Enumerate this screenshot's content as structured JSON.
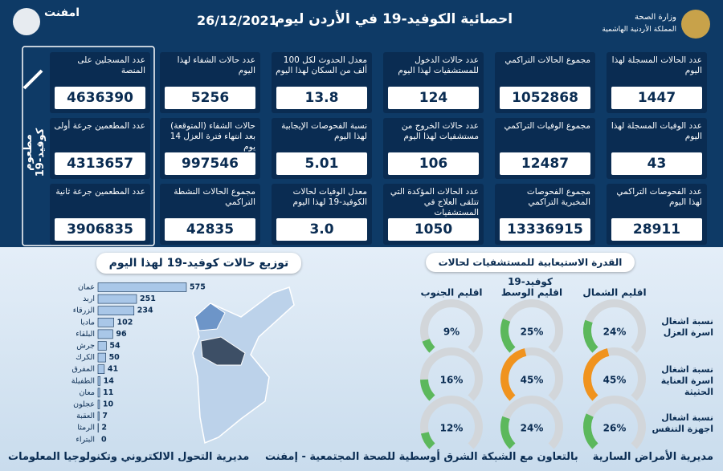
{
  "header": {
    "title": "احصائية الكوفيد-19 في الأردن ليوم",
    "date": "26/12/2021",
    "ministry": "وزارة الصحة",
    "kingdom": "المملكة الأردنية الهاشمية",
    "logo": "امفنت"
  },
  "stats": [
    [
      {
        "label": "عدد الحالات المسجلة لهذا اليوم",
        "value": "1447"
      },
      {
        "label": "مجموع الحالات التراكمي",
        "value": "1052868"
      },
      {
        "label": "عدد حالات الدخول للمستشفيات لهذا اليوم",
        "value": "124"
      },
      {
        "label": "معدل الحدوث لكل 100 ألف من السكان لهذا اليوم",
        "value": "13.8"
      },
      {
        "label": "عدد حالات الشفاء لهذا اليوم",
        "value": "5256"
      }
    ],
    [
      {
        "label": "عدد الوفيات المسجلة لهذا اليوم",
        "value": "43"
      },
      {
        "label": "مجموع الوفيات التراكمي",
        "value": "12487"
      },
      {
        "label": "عدد حالات الخروج من مستشفيات لهذا اليوم",
        "value": "106"
      },
      {
        "label": "نسبة الفحوصات الإيجابية لهذا اليوم",
        "value": "5.01"
      },
      {
        "label": "حالات الشفاء (المتوقعة) بعد انتهاء فترة العزل 14 يوم",
        "value": "997546"
      }
    ],
    [
      {
        "label": "عدد الفحوصات التراكمي لهذا اليوم",
        "value": "28911"
      },
      {
        "label": "مجموع الفحوصات المخبرية التراكمي",
        "value": "13336915"
      },
      {
        "label": "عدد الحالات المؤكدة التي تتلقى العلاج في المستشفيات",
        "value": "1050"
      },
      {
        "label": "معدل الوفيات لحالات الكوفيد-19 لهذا اليوم",
        "value": "3.0"
      },
      {
        "label": "مجموع الحالات النشطة التراكمي",
        "value": "42835"
      }
    ]
  ],
  "vaccine": {
    "title": "مطعوم كوفيد-19",
    "cards": [
      {
        "label": "عدد المسجلين على المنصة",
        "value": "4636390"
      },
      {
        "label": "عدد المطعمين جرعة أولى",
        "value": "4313657"
      },
      {
        "label": "عدد المطعمين جرعة ثانية",
        "value": "3906835"
      }
    ]
  },
  "chart_data": {
    "type": "bar",
    "title": "توزيع حالات كوفيد-19 لهذا اليوم",
    "categories": [
      "عمان",
      "اربد",
      "الزرقاء",
      "مادبا",
      "البلقاء",
      "جرش",
      "الكرك",
      "المفرق",
      "الطفيلة",
      "معان",
      "عجلون",
      "العقبة",
      "الرمثا",
      "البتراء"
    ],
    "values": [
      575,
      251,
      234,
      102,
      96,
      54,
      50,
      41,
      14,
      11,
      10,
      7,
      2,
      0
    ],
    "color": "#a9c7e8"
  },
  "capacity": {
    "title": "القدرة الاستيعابية للمستشفيات لحالات كوفيد-19",
    "regions": [
      "اقليم الشمال",
      "اقليم الوسط",
      "اقليم الجنوب"
    ],
    "rows": [
      {
        "label": "نسبة اشغال اسرة العزل",
        "values": [
          24,
          25,
          9
        ],
        "value_labels": [
          "24%",
          "25%",
          "9%"
        ],
        "colors": [
          "#5cb85c",
          "#5cb85c",
          "#5cb85c"
        ]
      },
      {
        "label": "نسبة اشغال اسرة العناية الحثيثة",
        "values": [
          45,
          45,
          16
        ],
        "value_labels": [
          "45%",
          "45%",
          "16%"
        ],
        "colors": [
          "#f0931e",
          "#f0931e",
          "#5cb85c"
        ]
      },
      {
        "label": "نسبة اشغال اجهزة التنفس",
        "values": [
          26,
          24,
          12
        ],
        "value_labels": [
          "26%",
          "24%",
          "12%"
        ],
        "colors": [
          "#5cb85c",
          "#5cb85c",
          "#5cb85c"
        ]
      }
    ]
  },
  "footer": {
    "left": "مديرية التحول الالكتروني وتكنولوجيا المعلومات",
    "center": "بالتعاون مع الشبكة الشرق أوسطية للصحة المجتمعية - إمفنت",
    "right": "مديرية الأمراض السارية"
  }
}
